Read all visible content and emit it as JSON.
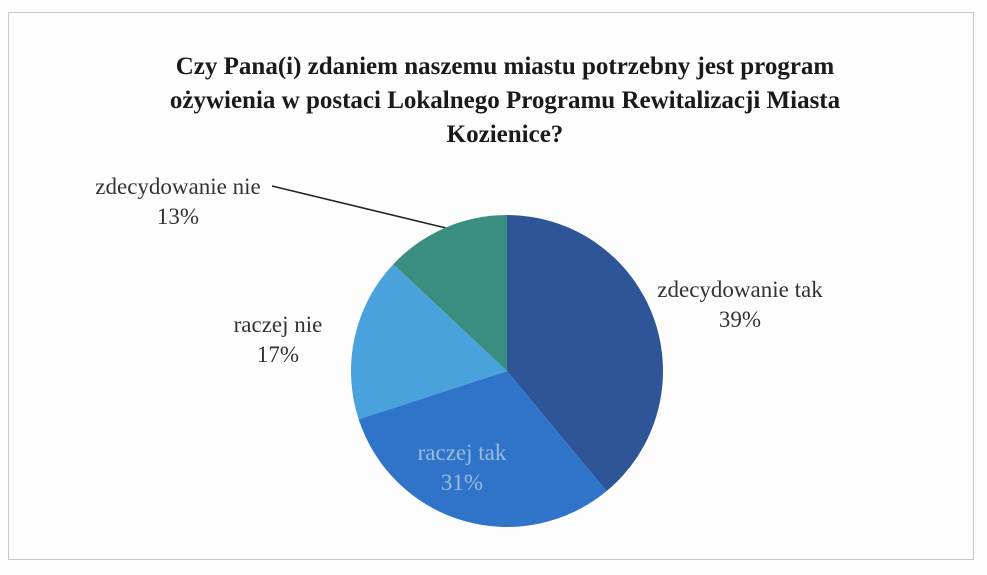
{
  "chart_data": {
    "type": "pie",
    "title": "Czy Pana(i) zdaniem naszemu miastu potrzebny jest program ożywienia w postaci Lokalnego Programu Rewitalizacji Miasta Kozienice?",
    "categories": [
      "zdecydowanie tak",
      "raczej tak",
      "raczej nie",
      "zdecydowanie nie"
    ],
    "values": [
      39,
      31,
      17,
      13
    ],
    "value_labels": [
      "39%",
      "31%",
      "17%",
      "13%"
    ],
    "colors": [
      "#2d5597",
      "#2f74c8",
      "#4aa2dc",
      "#3a8e7f"
    ]
  }
}
